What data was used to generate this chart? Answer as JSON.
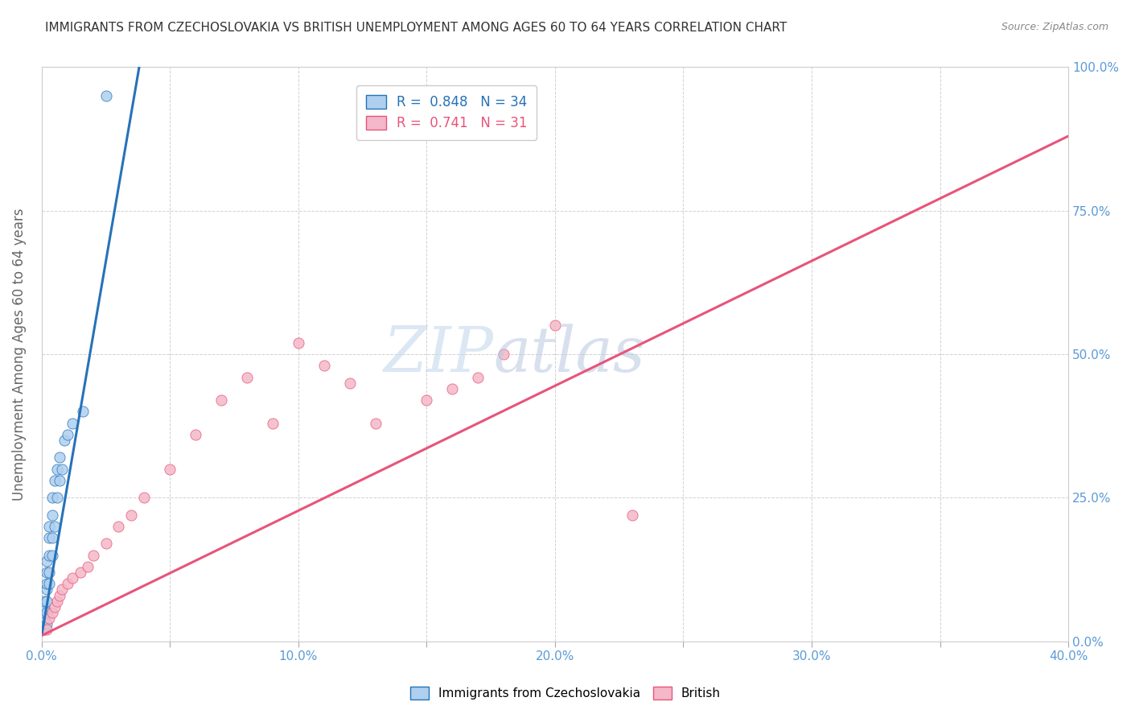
{
  "title": "IMMIGRANTS FROM CZECHOSLOVAKIA VS BRITISH UNEMPLOYMENT AMONG AGES 60 TO 64 YEARS CORRELATION CHART",
  "source": "Source: ZipAtlas.com",
  "ylabel": "Unemployment Among Ages 60 to 64 years",
  "x_ticks": [
    0.0,
    0.05,
    0.1,
    0.15,
    0.2,
    0.25,
    0.3,
    0.35,
    0.4
  ],
  "x_tick_labels": [
    "0.0%",
    "",
    "10.0%",
    "",
    "20.0%",
    "",
    "30.0%",
    "",
    "40.0%"
  ],
  "y_ticks": [
    0.0,
    0.25,
    0.5,
    0.75,
    1.0
  ],
  "y_tick_labels_right": [
    "0.0%",
    "25.0%",
    "50.0%",
    "75.0%",
    "100.0%"
  ],
  "xlim": [
    0.0,
    0.4
  ],
  "ylim": [
    0.0,
    1.0
  ],
  "blue_R": 0.848,
  "blue_N": 34,
  "pink_R": 0.741,
  "pink_N": 31,
  "blue_color": "#aecfee",
  "pink_color": "#f4b8c8",
  "blue_line_color": "#2672b8",
  "pink_line_color": "#e8547a",
  "blue_scatter_x": [
    0.001,
    0.001,
    0.001,
    0.001,
    0.001,
    0.001,
    0.002,
    0.002,
    0.002,
    0.002,
    0.002,
    0.002,
    0.002,
    0.003,
    0.003,
    0.003,
    0.003,
    0.003,
    0.004,
    0.004,
    0.004,
    0.004,
    0.005,
    0.005,
    0.006,
    0.006,
    0.007,
    0.007,
    0.008,
    0.009,
    0.01,
    0.012,
    0.016,
    0.025
  ],
  "blue_scatter_y": [
    0.02,
    0.03,
    0.04,
    0.05,
    0.06,
    0.07,
    0.03,
    0.05,
    0.07,
    0.09,
    0.1,
    0.12,
    0.14,
    0.1,
    0.12,
    0.15,
    0.18,
    0.2,
    0.15,
    0.18,
    0.22,
    0.25,
    0.2,
    0.28,
    0.25,
    0.3,
    0.28,
    0.32,
    0.3,
    0.35,
    0.36,
    0.38,
    0.4,
    0.95
  ],
  "pink_scatter_x": [
    0.002,
    0.003,
    0.004,
    0.005,
    0.006,
    0.007,
    0.008,
    0.01,
    0.012,
    0.015,
    0.018,
    0.02,
    0.025,
    0.03,
    0.035,
    0.04,
    0.05,
    0.06,
    0.07,
    0.08,
    0.09,
    0.1,
    0.11,
    0.12,
    0.13,
    0.15,
    0.16,
    0.17,
    0.18,
    0.2,
    0.23
  ],
  "pink_scatter_y": [
    0.02,
    0.04,
    0.05,
    0.06,
    0.07,
    0.08,
    0.09,
    0.1,
    0.11,
    0.12,
    0.13,
    0.15,
    0.17,
    0.2,
    0.22,
    0.25,
    0.3,
    0.36,
    0.42,
    0.46,
    0.38,
    0.52,
    0.48,
    0.45,
    0.38,
    0.42,
    0.44,
    0.46,
    0.5,
    0.55,
    0.22
  ],
  "blue_line_x0": 0.0,
  "blue_line_y0": 0.01,
  "blue_line_x1": 0.038,
  "blue_line_y1": 1.0,
  "pink_line_x0": 0.0,
  "pink_line_y0": 0.01,
  "pink_line_x1": 0.4,
  "pink_line_y1": 0.88,
  "legend_label_blue": "Immigrants from Czechoslovakia",
  "legend_label_pink": "British",
  "background_color": "#ffffff",
  "grid_color": "#cccccc"
}
